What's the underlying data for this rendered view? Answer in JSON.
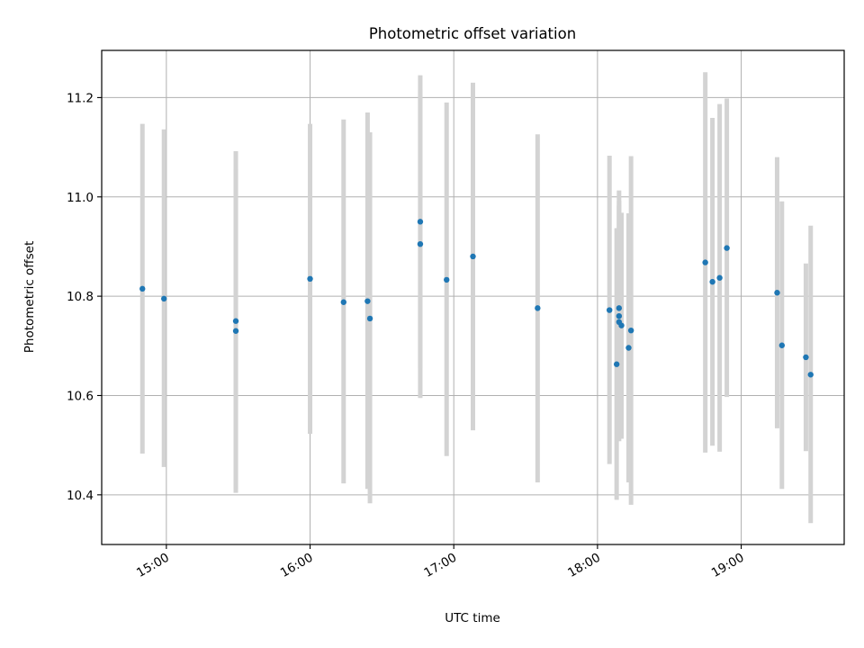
{
  "chart_data": {
    "type": "scatter",
    "title": "Photometric offset variation",
    "xlabel": "UTC time",
    "ylabel": "Photometric offset",
    "xlim": [
      "14:33",
      "19:43"
    ],
    "ylim": [
      10.3,
      11.295
    ],
    "x_ticks": [
      "15:00",
      "16:00",
      "17:00",
      "18:00",
      "19:00"
    ],
    "y_ticks": [
      "10.4",
      "10.6",
      "10.8",
      "11.0",
      "11.2"
    ],
    "grid": true,
    "marker_color": "#1f77b4",
    "errorbar_color": "#d3d3d3",
    "points": [
      {
        "x": "14:50",
        "y": 10.815,
        "ylo": 10.483,
        "yhi": 11.147
      },
      {
        "x": "14:59",
        "y": 10.795,
        "ylo": 10.456,
        "yhi": 11.136
      },
      {
        "x": "15:29",
        "y": 10.73,
        "ylo": 10.404,
        "yhi": 11.056
      },
      {
        "x": "15:29",
        "y": 10.75,
        "ylo": 10.412,
        "yhi": 11.092
      },
      {
        "x": "16:00",
        "y": 10.835,
        "ylo": 10.523,
        "yhi": 11.147
      },
      {
        "x": "16:14",
        "y": 10.788,
        "ylo": 10.423,
        "yhi": 11.156
      },
      {
        "x": "16:24",
        "y": 10.79,
        "ylo": 10.412,
        "yhi": 11.17
      },
      {
        "x": "16:25",
        "y": 10.755,
        "ylo": 10.383,
        "yhi": 11.13
      },
      {
        "x": "16:46",
        "y": 10.95,
        "ylo": 10.655,
        "yhi": 11.245
      },
      {
        "x": "16:46",
        "y": 10.905,
        "ylo": 10.595,
        "yhi": 11.216
      },
      {
        "x": "16:57",
        "y": 10.833,
        "ylo": 10.478,
        "yhi": 11.19
      },
      {
        "x": "17:08",
        "y": 10.88,
        "ylo": 10.53,
        "yhi": 11.23
      },
      {
        "x": "17:35",
        "y": 10.776,
        "ylo": 10.425,
        "yhi": 11.126
      },
      {
        "x": "18:05",
        "y": 10.772,
        "ylo": 10.462,
        "yhi": 11.083
      },
      {
        "x": "18:08",
        "y": 10.663,
        "ylo": 10.39,
        "yhi": 10.937
      },
      {
        "x": "18:09",
        "y": 10.76,
        "ylo": 10.508,
        "yhi": 11.013
      },
      {
        "x": "18:09",
        "y": 10.748,
        "ylo": 10.513,
        "yhi": 10.983
      },
      {
        "x": "18:09",
        "y": 10.776,
        "ylo": 10.56,
        "yhi": 10.992
      },
      {
        "x": "18:10",
        "y": 10.741,
        "ylo": 10.513,
        "yhi": 10.968
      },
      {
        "x": "18:13",
        "y": 10.696,
        "ylo": 10.425,
        "yhi": 10.967
      },
      {
        "x": "18:14",
        "y": 10.731,
        "ylo": 10.38,
        "yhi": 11.082
      },
      {
        "x": "18:45",
        "y": 10.868,
        "ylo": 10.485,
        "yhi": 11.251
      },
      {
        "x": "18:48",
        "y": 10.829,
        "ylo": 10.499,
        "yhi": 11.159
      },
      {
        "x": "18:51",
        "y": 10.837,
        "ylo": 10.487,
        "yhi": 11.187
      },
      {
        "x": "18:54",
        "y": 10.897,
        "ylo": 10.597,
        "yhi": 11.198
      },
      {
        "x": "19:15",
        "y": 10.807,
        "ylo": 10.534,
        "yhi": 11.08
      },
      {
        "x": "19:17",
        "y": 10.701,
        "ylo": 10.412,
        "yhi": 10.991
      },
      {
        "x": "19:27",
        "y": 10.677,
        "ylo": 10.488,
        "yhi": 10.866
      },
      {
        "x": "19:29",
        "y": 10.642,
        "ylo": 10.343,
        "yhi": 10.942
      }
    ]
  }
}
